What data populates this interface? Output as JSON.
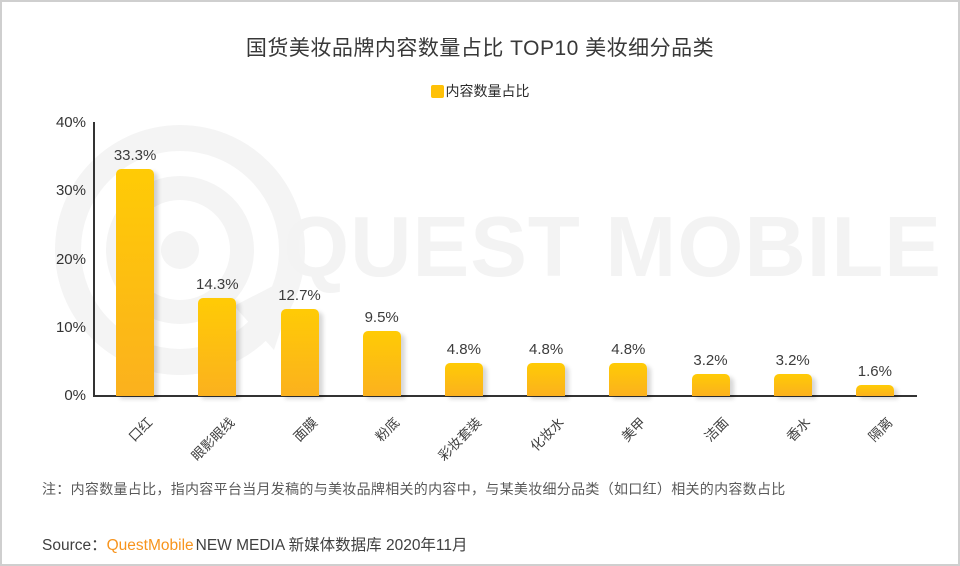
{
  "title": "国货美妆品牌内容数量占比 TOP10 美妆细分品类",
  "legend_label": "内容数量占比",
  "watermark_text": "QUEST MOBILE",
  "colors": {
    "accent_orange": "#F7941D",
    "legend_swatch": "#FFC107",
    "bar_top": "#FFCB05",
    "bar_bottom": "#FBB11E",
    "axis": "#333333",
    "watermark": "#f3f3f3"
  },
  "chart_data": {
    "type": "bar",
    "title": "国货美妆品牌内容数量占比 TOP10 美妆细分品类",
    "categories": [
      "口红",
      "眼影眼线",
      "面膜",
      "粉底",
      "彩妆套装",
      "化妆水",
      "美甲",
      "洁面",
      "香水",
      "隔离"
    ],
    "values": [
      33.3,
      14.3,
      12.7,
      9.5,
      4.8,
      4.8,
      4.8,
      3.2,
      3.2,
      1.6
    ],
    "value_labels": [
      "33.3%",
      "14.3%",
      "12.7%",
      "9.5%",
      "4.8%",
      "4.8%",
      "4.8%",
      "3.2%",
      "3.2%",
      "1.6%"
    ],
    "series_name": "内容数量占比",
    "xlabel": "",
    "ylabel": "",
    "ylim": [
      0,
      40
    ],
    "yticks": [
      "0%",
      "10%",
      "20%",
      "30%",
      "40%"
    ],
    "ytick_values": [
      0,
      10,
      20,
      30,
      40
    ],
    "grid": false,
    "legend_position": "top-center",
    "bar_color_top": "#FFCB05",
    "bar_color_bottom": "#FBB11E"
  },
  "note": "注：内容数量占比，指内容平台当月发稿的与美妆品牌相关的内容中，与某美妆细分品类（如口红）相关的内容数占比",
  "source": {
    "prefix": "Source：",
    "brand": "QuestMobile",
    "suffix": "NEW MEDIA 新媒体数据库 2020年11月"
  }
}
